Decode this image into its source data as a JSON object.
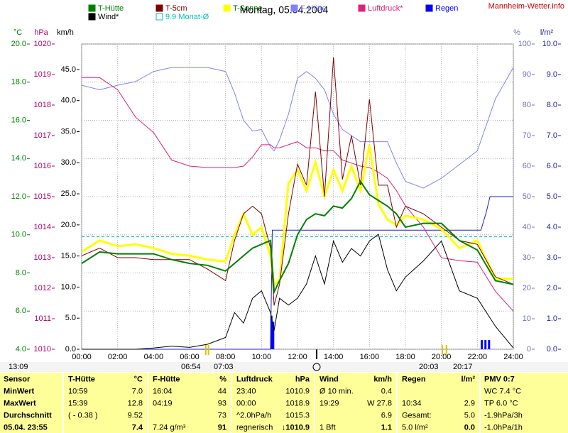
{
  "chart_data": {
    "type": "line",
    "title": "Montag, 05.04.2004",
    "source": "Mannheim-Wetter.info",
    "xlim": [
      0,
      24
    ],
    "xticks": [
      {
        "value": 0,
        "label": "00:00"
      },
      {
        "value": 2,
        "label": "02:00"
      },
      {
        "value": 4,
        "label": "04:00"
      },
      {
        "value": 6,
        "label": "06:00"
      },
      {
        "value": 8,
        "label": "08:00"
      },
      {
        "value": 10,
        "label": "10:00"
      },
      {
        "value": 12,
        "label": "12:00"
      },
      {
        "value": 14,
        "label": "14:00"
      },
      {
        "value": 16,
        "label": "16:00"
      },
      {
        "value": 18,
        "label": "18:00"
      },
      {
        "value": 20,
        "label": "20:00"
      },
      {
        "value": 22,
        "label": "22:00"
      },
      {
        "value": 24,
        "label": "24:00"
      }
    ],
    "grid": true,
    "y_axes": [
      {
        "unit": "°C",
        "color": "#008000",
        "lim": [
          4,
          20
        ],
        "ticks": [
          {
            "value": 4,
            "label": "4.0"
          },
          {
            "value": 6,
            "label": "6.0"
          },
          {
            "value": 8,
            "label": "8.0"
          },
          {
            "value": 10,
            "label": "10.0"
          },
          {
            "value": 12,
            "label": "12.0"
          },
          {
            "value": 14,
            "label": "14.0"
          },
          {
            "value": 16,
            "label": "16.0"
          },
          {
            "value": 18,
            "label": "18.0"
          },
          {
            "value": 20,
            "label": "20.0"
          }
        ]
      },
      {
        "unit": "hPa",
        "color": "#b0006a",
        "lim": [
          1010,
          1020
        ],
        "ticks": [
          1010,
          1011,
          1012,
          1013,
          1014,
          1015,
          1016,
          1017,
          1018,
          1019,
          1020
        ]
      },
      {
        "unit": "km/h",
        "color": "#000000",
        "lim": [
          0,
          49.1
        ],
        "ticks": [
          {
            "value": 0,
            "label": "0.0"
          },
          {
            "value": 5,
            "label": "5.0"
          },
          {
            "value": 10,
            "label": "10.0"
          },
          {
            "value": 15,
            "label": "15.0"
          },
          {
            "value": 20,
            "label": "20.0"
          },
          {
            "value": 25,
            "label": "25.0"
          },
          {
            "value": 30,
            "label": "30.0"
          },
          {
            "value": 35,
            "label": "35.0"
          },
          {
            "value": 40,
            "label": "40.0"
          },
          {
            "value": 45,
            "label": "45.0"
          }
        ]
      },
      {
        "unit": "%",
        "color": "#7070c0",
        "lim": [
          0,
          100
        ],
        "ticks": [
          0,
          10,
          20,
          30,
          40,
          50,
          60,
          70,
          80,
          90,
          100
        ]
      },
      {
        "unit": "l/m²",
        "color": "#2020a0",
        "lim": [
          0,
          10
        ],
        "ticks": [
          {
            "value": 0,
            "label": "0.0"
          },
          {
            "value": 1,
            "label": "1.0"
          },
          {
            "value": 2,
            "label": "2.0"
          },
          {
            "value": 3,
            "label": "3.0"
          },
          {
            "value": 4,
            "label": "4.0"
          },
          {
            "value": 5,
            "label": "5.0"
          },
          {
            "value": 6,
            "label": "6.0"
          },
          {
            "value": 7,
            "label": "7.0"
          },
          {
            "value": 8,
            "label": "8.0"
          },
          {
            "value": 9,
            "label": "9.0"
          },
          {
            "value": 10,
            "label": "10.0"
          }
        ]
      }
    ],
    "x": [
      0,
      1,
      2,
      3,
      4,
      5,
      6,
      7,
      8,
      8.5,
      9,
      9.5,
      10,
      10.5,
      10.7,
      11,
      11.5,
      12,
      12.5,
      13,
      13.5,
      14,
      14.5,
      15,
      15.5,
      16,
      16.5,
      17,
      17.5,
      18,
      19,
      20,
      21,
      22,
      23,
      24
    ],
    "series": [
      {
        "name": "F-Hütte",
        "color": "#8080ff",
        "axis": 3,
        "width": 1,
        "values": [
          86.5,
          85,
          86.5,
          87.7,
          91,
          92.3,
          92.3,
          92.3,
          91,
          84,
          75,
          71.5,
          72,
          66.3,
          65,
          68.6,
          77,
          88.8,
          91,
          88.8,
          85,
          77,
          72,
          70,
          68,
          68,
          68,
          68,
          61,
          55,
          52.8,
          56,
          60.5,
          65,
          82,
          92.3
        ]
      },
      {
        "name": "Luftdruck*",
        "color": "#e0207a",
        "axis": 1,
        "width": 1,
        "values": [
          1018.9,
          1018.9,
          1018.5,
          1017.6,
          1017.1,
          1016.2,
          1016.0,
          1015.95,
          1015.95,
          1015.95,
          1016.0,
          1016.3,
          1016.7,
          1016.7,
          1016.6,
          1016.6,
          1016.7,
          1016.8,
          1016.6,
          1016.6,
          1016.5,
          1016.5,
          1016.2,
          1016.1,
          1016.0,
          1015.95,
          1015.8,
          1015.6,
          1015.2,
          1014.7,
          1014.0,
          1013.0,
          1012.9,
          1012.85,
          1011.9,
          1011.25
        ]
      },
      {
        "name": "Wind*",
        "color": "#000000",
        "axis": 2,
        "width": 1,
        "values": [
          0,
          0,
          0,
          0,
          0.2,
          0.5,
          0.3,
          0.8,
          1.9,
          5.9,
          4.2,
          8.2,
          9.4,
          5.9,
          3.0,
          8.2,
          7.1,
          8.2,
          10.5,
          15.0,
          10.5,
          17.4,
          14.0,
          16.2,
          15.0,
          17.4,
          18.5,
          12.8,
          9.4,
          11.6,
          14.2,
          17.4,
          9.4,
          8.2,
          3.7,
          0.2
        ]
      },
      {
        "name": "T-Sonne",
        "color": "#ffff00",
        "axis": 0,
        "width": 3,
        "values": [
          9.1,
          9.7,
          9.4,
          9.5,
          9.3,
          9.0,
          8.9,
          8.7,
          8.6,
          10.0,
          11.1,
          10.0,
          10.4,
          8.9,
          7.4,
          7.6,
          12.7,
          13.4,
          12.3,
          13.8,
          12.0,
          13.4,
          12.3,
          13.6,
          12.3,
          14.7,
          11.6,
          10.8,
          10.5,
          11.0,
          10.8,
          10.3,
          9.3,
          9.7,
          7.7,
          7.7
        ]
      },
      {
        "name": "T-5cm",
        "color": "#800000",
        "axis": 0,
        "width": 1,
        "values": [
          8.9,
          9.3,
          8.8,
          8.8,
          8.7,
          8.7,
          8.7,
          8.2,
          7.6,
          9.7,
          11.1,
          11.5,
          11.1,
          9.3,
          6.3,
          7.4,
          11.1,
          13.7,
          12.6,
          17.5,
          12.0,
          19.3,
          12.9,
          15.2,
          12.6,
          17.1,
          12.6,
          12.6,
          10.4,
          11.5,
          11.1,
          10.4,
          9.7,
          9.5,
          7.8,
          7.4
        ]
      },
      {
        "name": "T-Hütte",
        "color": "#008000",
        "axis": 0,
        "width": 2,
        "values": [
          8.5,
          9.1,
          9.0,
          9.0,
          9.0,
          8.7,
          8.5,
          8.4,
          8.1,
          8.5,
          8.9,
          9.3,
          9.5,
          9.7,
          7.0,
          7.6,
          8.5,
          10.0,
          10.8,
          11.1,
          11.0,
          11.5,
          11.4,
          11.9,
          12.8,
          12.1,
          11.8,
          11.5,
          11.1,
          10.4,
          10.6,
          10.6,
          9.7,
          9.2,
          7.6,
          7.4
        ]
      }
    ],
    "rain": {
      "name": "Regen",
      "color": "#0000ff",
      "axis": 4,
      "x": [
        10.55,
        10.65,
        22.25,
        22.45,
        22.65
      ],
      "values": [
        1.1,
        0.9,
        0.3,
        0.3,
        0.3
      ],
      "total_x": [
        0,
        10.5,
        10.6,
        22.2,
        22.5,
        22.7,
        24
      ],
      "total_values": [
        0,
        0,
        3.9,
        3.9,
        4.5,
        5.0,
        5.0
      ]
    },
    "mean": {
      "name": "9.9 Monat-Ø",
      "color": "#00c0c0",
      "axis": 0,
      "value": 9.9
    },
    "sun_left": "06:54",
    "sun_left_2": "07:03",
    "sun_right": "20:03",
    "sun_right_2": "20:17",
    "moon": "13:09"
  },
  "table": {
    "rows": [
      [
        "Sensor",
        {
          "l": "T-Hütte",
          "r": "°C"
        },
        {
          "l": "F-Hütte",
          "r": "%"
        },
        {
          "l": "Luftdruck",
          "r": "hPa"
        },
        {
          "l": "Wind",
          "r": "km/h"
        },
        {
          "l": "Regen",
          "r": "l/m²"
        },
        "PMV 0:7"
      ],
      [
        "MinWert",
        {
          "l": "10:59",
          "r": "7.0"
        },
        {
          "l": "16:04",
          "r": "44"
        },
        {
          "l": "23:40",
          "r": "1010.9"
        },
        {
          "l": "Ø 10 min.",
          "r": "0.4"
        },
        {},
        "WC 7.4 °C"
      ],
      [
        "MaxWert",
        {
          "l": "15:39",
          "r": "12.8"
        },
        {
          "l": "04:19",
          "r": "93"
        },
        {
          "l": "00:00",
          "r": "1018.9"
        },
        {
          "l": "19:29",
          "r": "W 27.8"
        },
        {
          "l": "10:34",
          "r": "2.9"
        },
        "TP 6.0 °C"
      ],
      [
        "Durchschnitt",
        {
          "l": "( - 0.38 )",
          "r": "9.52"
        },
        {
          "r": "73"
        },
        {
          "l": "^2.0hPa/h",
          "r": "1015.3"
        },
        {
          "r": "6.9"
        },
        {
          "l": "Gesamt:",
          "r": "5.0"
        },
        "-1.9hPa/3h"
      ],
      [
        "05.04. 23:55",
        {
          "r": "7.4"
        },
        {
          "l": "7.24 g/m³",
          "r": "91"
        },
        {
          "l": "regnerisch",
          "r": "↓1010.9"
        },
        {
          "l": "1 Bft",
          "r": "1.1"
        },
        {
          "l": "5.0 l/m²",
          "r": "0.0"
        },
        "-1.0hPa/1h"
      ]
    ]
  }
}
